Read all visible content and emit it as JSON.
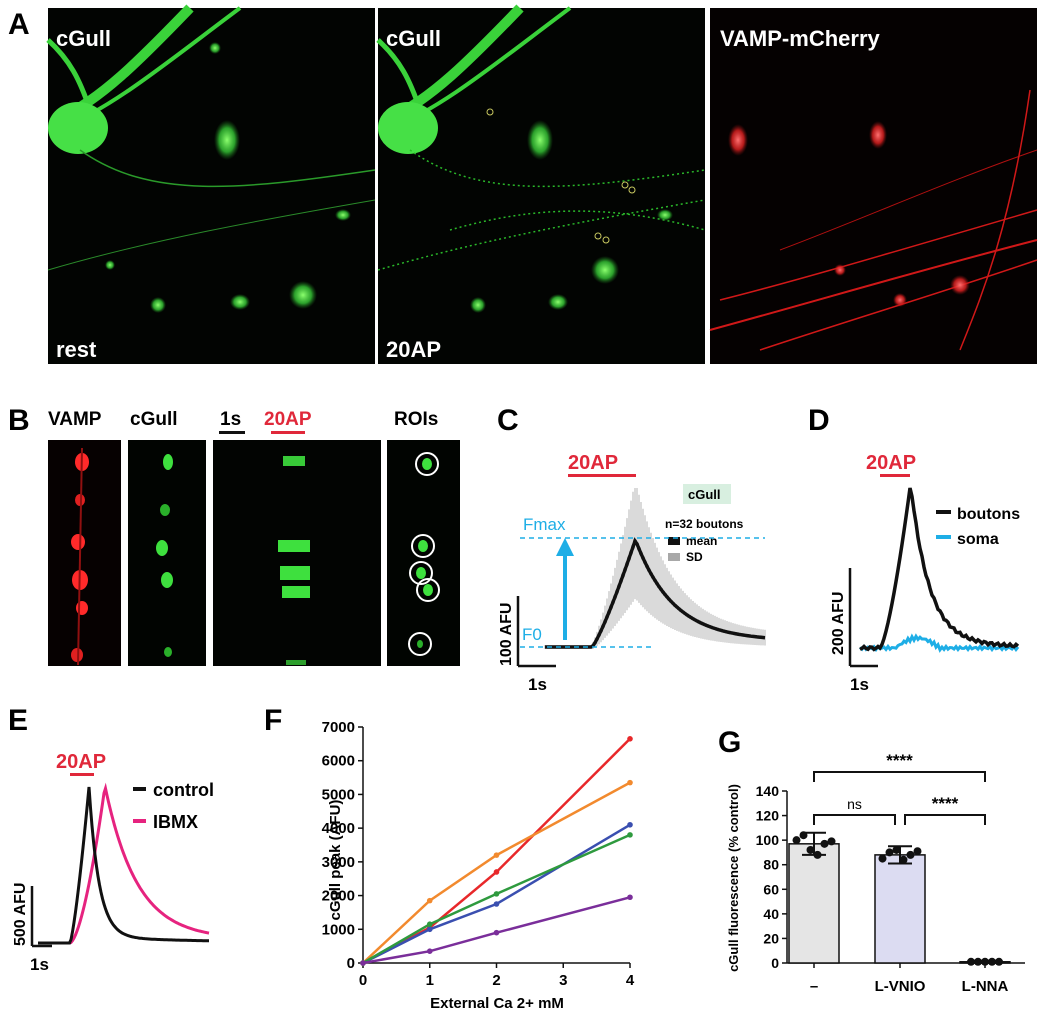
{
  "panels": {
    "A": {
      "letter": "A",
      "images": [
        {
          "label": "cGull",
          "condition": "rest"
        },
        {
          "label": "cGull",
          "condition": "20AP"
        },
        {
          "label": "VAMP-mCherry",
          "condition": ""
        }
      ]
    },
    "B": {
      "letter": "B",
      "columns": [
        "VAMP",
        "cGull",
        "20AP",
        "ROIs"
      ],
      "scale_label": "1s"
    },
    "C": {
      "letter": "C",
      "stim_label": "20AP",
      "sensor_badge": "cGull",
      "legend_title": "n=32 boutons",
      "legend_mean": "mean",
      "legend_sd": "SD",
      "fmax_label": "Fmax",
      "f0_label": "F0",
      "y_scale_label": "100 AFU",
      "x_scale_label": "1s"
    },
    "D": {
      "letter": "D",
      "stim_label": "20AP",
      "legend": [
        "boutons",
        "soma"
      ],
      "y_scale_label": "200 AFU",
      "x_scale_label": "1s"
    },
    "E": {
      "letter": "E",
      "stim_label": "20AP",
      "legend": [
        "control",
        "IBMX"
      ],
      "y_scale_label": "500 AFU",
      "x_scale_label": "1s"
    },
    "F": {
      "letter": "F"
    },
    "G": {
      "letter": "G",
      "sig_labels": [
        "****",
        "ns",
        "****"
      ]
    }
  },
  "colors": {
    "stim_red": "#e0283a",
    "cyan": "#1eaee6",
    "ibmx_magenta": "#e6237f",
    "green_signal": "#3ee03e",
    "red_signal": "#ff2a2a"
  },
  "chart_data": [
    {
      "panel": "F",
      "type": "line",
      "xlabel": "External Ca 2+ mM",
      "ylabel": "cGull peak (AFU)",
      "x": [
        0,
        1,
        2,
        4
      ],
      "xlim": [
        0,
        4
      ],
      "ylim": [
        0,
        7000
      ],
      "xticks": [
        0,
        1,
        2,
        3,
        4
      ],
      "yticks": [
        0,
        1000,
        2000,
        3000,
        4000,
        5000,
        6000,
        7000
      ],
      "series": [
        {
          "color": "#e8282a",
          "values": [
            0,
            1050,
            2700,
            6650
          ]
        },
        {
          "color": "#f28a2e",
          "values": [
            0,
            1850,
            3200,
            5350
          ]
        },
        {
          "color": "#3a4fb0",
          "values": [
            0,
            1000,
            1750,
            4100
          ]
        },
        {
          "color": "#2e9a3e",
          "values": [
            0,
            1150,
            2050,
            3800
          ]
        },
        {
          "color": "#7a2e9a",
          "values": [
            0,
            350,
            900,
            1950
          ]
        }
      ]
    },
    {
      "panel": "G",
      "type": "bar",
      "ylabel": "cGull fluorescence (% control)",
      "categories": [
        "–",
        "L-VNIO",
        "L-NNA"
      ],
      "values": [
        97,
        88,
        1
      ],
      "errors": [
        9,
        7,
        1
      ],
      "points": [
        [
          100,
          104,
          92,
          88,
          97,
          99
        ],
        [
          85,
          90,
          92,
          84,
          88,
          91
        ],
        [
          1,
          1,
          1,
          1,
          1
        ]
      ],
      "ylim": [
        0,
        140
      ],
      "yticks": [
        0,
        20,
        40,
        60,
        80,
        100,
        120,
        140
      ],
      "bar_colors": [
        "#e5e5e5",
        "#dcdcf2",
        "#e5e5e5"
      ]
    }
  ]
}
